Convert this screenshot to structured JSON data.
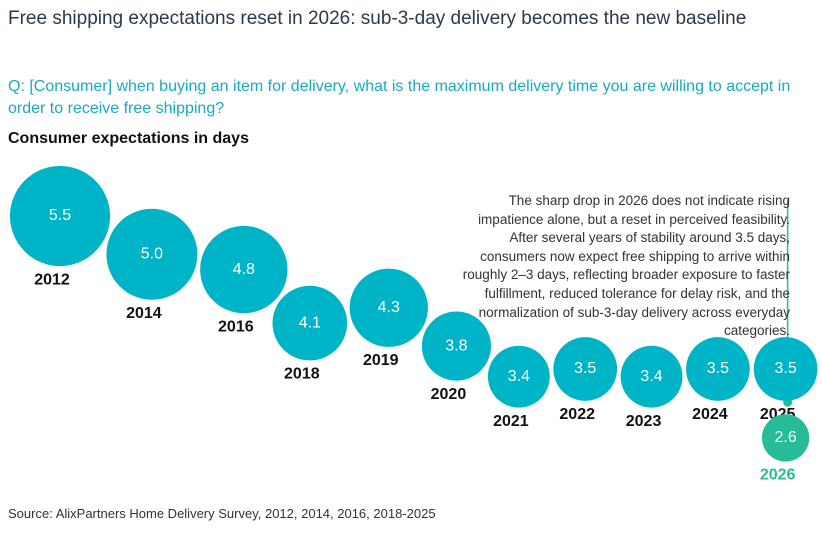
{
  "chart_data": {
    "type": "bubble",
    "title": "Free shipping expectations reset in 2026: sub-3-day delivery becomes the new baseline",
    "question": "Q: [Consumer] when buying an item for delivery, what is the maximum delivery time you are willing to accept in order to receive free shipping?",
    "subtitle": "Consumer expectations in days",
    "categories": [
      "2012",
      "2014",
      "2016",
      "2018",
      "2019",
      "2020",
      "2021",
      "2022",
      "2023",
      "2024",
      "2025",
      "2026"
    ],
    "values": [
      5.5,
      5.0,
      4.8,
      4.1,
      4.3,
      3.8,
      3.4,
      3.5,
      3.4,
      3.5,
      3.5,
      2.6
    ],
    "value_labels": [
      "5.5",
      "5.0",
      "4.8",
      "4.1",
      "4.3",
      "3.8",
      "3.4",
      "3.5",
      "3.4",
      "3.5",
      "3.5",
      "2.6"
    ],
    "colors": [
      "#00b4c8",
      "#00b4c8",
      "#00b4c8",
      "#00b4c8",
      "#00b4c8",
      "#00b4c8",
      "#00b4c8",
      "#00b4c8",
      "#00b4c8",
      "#00b4c8",
      "#00b4c8",
      "#26bc97"
    ],
    "annotation": "The sharp drop in 2026 does not indicate rising impatience alone, but a reset in perceived feasibility. After several years of stability around 3.5 days, consumers now expect free shipping to arrive within roughly 2–3 days, reflecting broader exposure to faster fulfillment, reduced tolerance for delay risk, and the normalization of sub-3-day delivery across everyday categories.",
    "source": "Source: AlixPartners Home Delivery Survey, 2012, 2014, 2016, 2018-2025"
  }
}
